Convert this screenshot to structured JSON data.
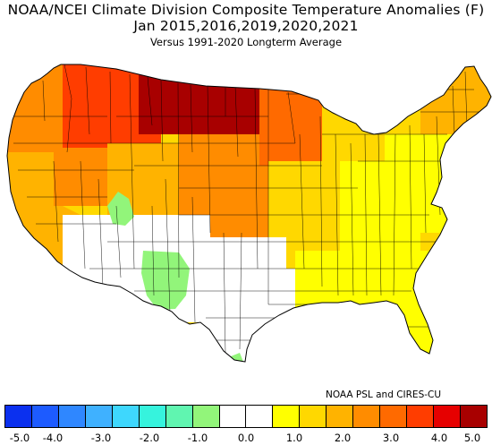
{
  "header": {
    "title_line1": "NOAA/NCEI Climate Division Composite Temperature Anomalies (F)",
    "title_line2": "Jan   2015,2016,2019,2020,2021",
    "subtitle": "Versus 1991-2020 Longterm Average"
  },
  "credit": "NOAA PSL and CIRES-CU",
  "legend": {
    "colors": [
      "#0b30ef",
      "#1d5bff",
      "#2f87ff",
      "#3fb1ff",
      "#3ed7fd",
      "#36f3dd",
      "#60f5b0",
      "#92f57a",
      "#ffffff",
      "#ffffff",
      "#ffff00",
      "#ffd800",
      "#ffb300",
      "#ff8c00",
      "#ff6a00",
      "#ff3d00",
      "#e60000",
      "#a80000"
    ],
    "ticks": [
      "-5.0",
      "-4.0",
      "-3.0",
      "-2.0",
      "-1.0",
      "0.0",
      "1.0",
      "2.0",
      "3.0",
      "4.0",
      "5.0"
    ]
  },
  "map": {
    "fill_levels": [
      "#ffffff",
      "#ffff00",
      "#ffd800",
      "#ffb300",
      "#ff8c00",
      "#ff6a00",
      "#ff3d00",
      "#e60000",
      "#a80000",
      "#92f57a"
    ],
    "regions": [
      {
        "name": "pacific-northwest",
        "level": 4
      },
      {
        "name": "northern-rockies",
        "level": 6
      },
      {
        "name": "northern-plains",
        "level": 8
      },
      {
        "name": "upper-midwest",
        "level": 5
      },
      {
        "name": "great-lakes",
        "level": 2
      },
      {
        "name": "new-england",
        "level": 3
      },
      {
        "name": "california",
        "level": 3
      },
      {
        "name": "great-basin",
        "level": 4
      },
      {
        "name": "central-rockies",
        "level": 3
      },
      {
        "name": "central-plains",
        "level": 4
      },
      {
        "name": "midwest",
        "level": 2
      },
      {
        "name": "ohio-valley",
        "level": 1
      },
      {
        "name": "mid-atlantic",
        "level": 1
      },
      {
        "name": "southwest",
        "level": 0
      },
      {
        "name": "southern-plains",
        "level": 0
      },
      {
        "name": "southeast",
        "level": 1
      },
      {
        "name": "gulf-coast",
        "level": 0
      },
      {
        "name": "florida",
        "level": 1
      },
      {
        "name": "new-mexico-area",
        "level": 9
      },
      {
        "name": "utah-pocket",
        "level": 9
      },
      {
        "name": "south-texas-pocket",
        "level": 9
      }
    ]
  }
}
